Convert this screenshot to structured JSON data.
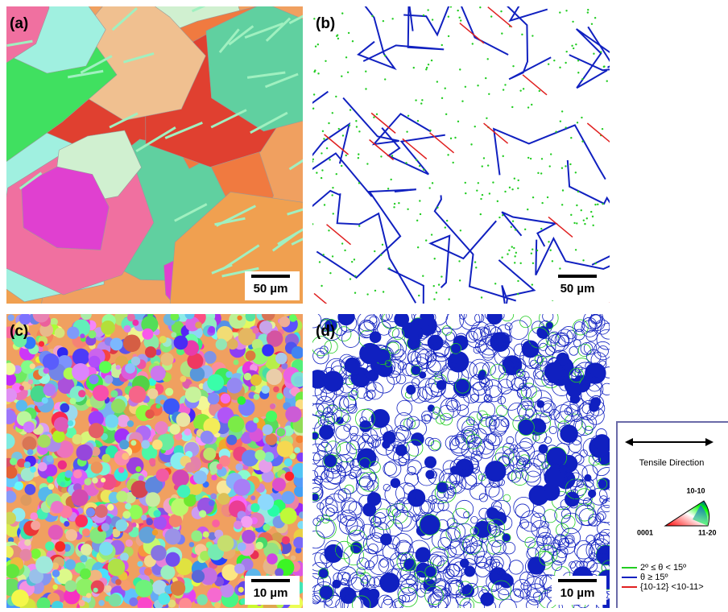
{
  "panels": [
    {
      "label": "(a)",
      "scale_bar": "50 µm"
    },
    {
      "label": "(b)",
      "scale_bar": "50 µm"
    },
    {
      "label": "(c)",
      "scale_bar": "10 µm"
    },
    {
      "label": "(d)",
      "scale_bar": "10 µm"
    }
  ],
  "legend": {
    "tensile": "Tensile Direction",
    "ipf": {
      "top": "10-10",
      "left": "0001",
      "right": "11-20"
    },
    "boundaries": [
      {
        "label": "2º ≤ θ < 15º",
        "color": "#22cc22"
      },
      {
        "label": "θ ≥ 15º",
        "color": "#1020c0"
      },
      {
        "label": "{10-12} <10-11>",
        "color": "#e02020"
      }
    ]
  }
}
